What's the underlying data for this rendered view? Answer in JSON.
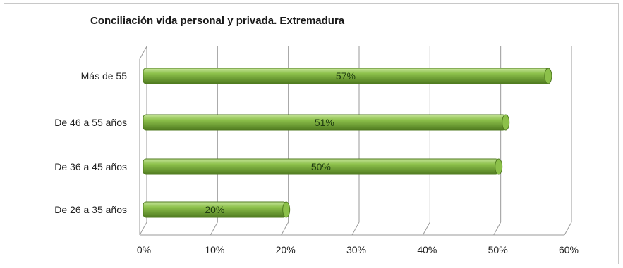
{
  "chart_data": {
    "type": "bar",
    "orientation": "horizontal",
    "title": "Conciliación vida personal y privada. Extremadura",
    "categories": [
      "De 26 a 35 años",
      "De 36 a 45 años",
      "De 46 a 55 años",
      "Más de 55"
    ],
    "values": [
      20,
      50,
      51,
      57
    ],
    "data_labels": [
      "20%",
      "50%",
      "51%",
      "57%"
    ],
    "xlim": [
      0,
      60
    ],
    "x_ticks": [
      0,
      10,
      20,
      30,
      40,
      50,
      60
    ],
    "x_tick_labels": [
      "0%",
      "10%",
      "20%",
      "30%",
      "40%",
      "50%",
      "60%"
    ],
    "grid": true,
    "legend": "none",
    "three_d": true,
    "bar_color": "#8cc04a",
    "bar_dark_color": "#4f7a1f",
    "bar_light_color": "#c6e59a",
    "grid_color": "#9a9a9a"
  }
}
